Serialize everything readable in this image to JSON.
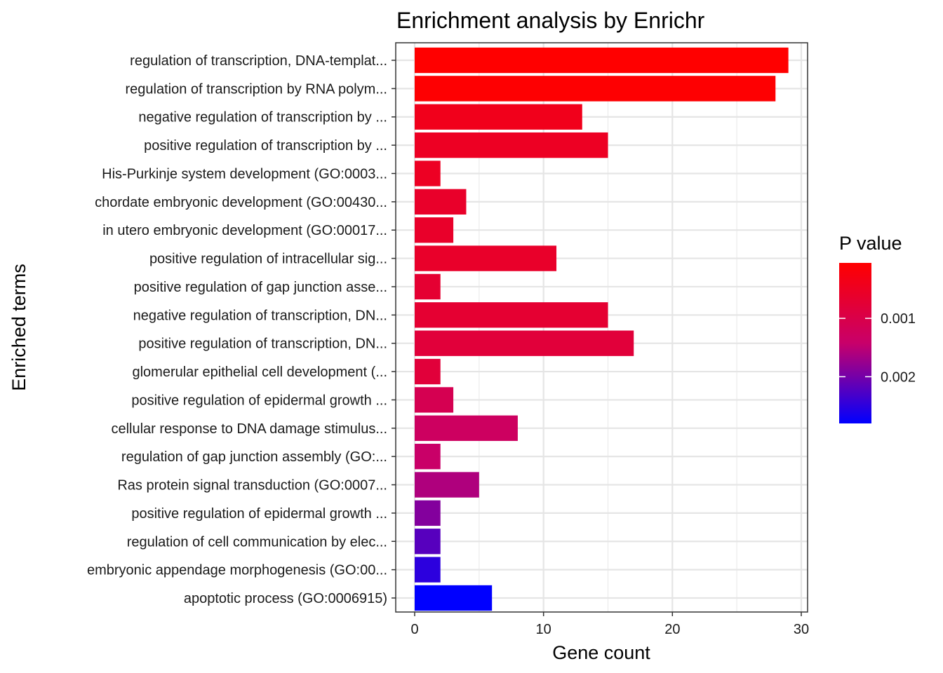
{
  "chart_data": {
    "type": "bar",
    "orientation": "horizontal",
    "title": "Enrichment analysis by Enrichr",
    "xlabel": "Gene count",
    "ylabel": "Enriched terms",
    "xlim": [
      0,
      30
    ],
    "x_ticks": [
      0,
      10,
      20,
      30
    ],
    "grid": true,
    "categories": [
      "regulation of transcription, DNA-templat...",
      "regulation of transcription by RNA polym...",
      "negative regulation of transcription by ...",
      "positive regulation of transcription by ...",
      "His-Purkinje system development (GO:0003...",
      "chordate embryonic development (GO:00430...",
      "in utero embryonic development (GO:00017...",
      "positive regulation of intracellular sig...",
      "positive regulation of gap junction asse...",
      "negative regulation of transcription, DN...",
      "positive regulation of transcription, DN...",
      "glomerular epithelial cell development (...",
      "positive regulation of epidermal growth ...",
      "cellular response to DNA damage stimulus...",
      "regulation of gap junction assembly (GO:...",
      "Ras protein signal transduction (GO:0007...",
      "positive regulation of epidermal growth ...",
      "regulation of cell communication by elec...",
      "embryonic appendage morphogenesis (GO:00...",
      "apoptotic process (GO:0006915)"
    ],
    "values": [
      29,
      28,
      13,
      15,
      2,
      4,
      3,
      11,
      2,
      15,
      17,
      2,
      3,
      8,
      2,
      5,
      2,
      2,
      2,
      6
    ],
    "p_values": [
      5e-05,
      8e-05,
      0.0004,
      0.0005,
      0.0005,
      0.0006,
      0.0006,
      0.0006,
      0.0007,
      0.0007,
      0.0008,
      0.0008,
      0.0011,
      0.0013,
      0.0014,
      0.0016,
      0.0019,
      0.0022,
      0.0025,
      0.0028
    ],
    "legend": {
      "title": "P value",
      "placement": "right",
      "range": [
        5e-05,
        0.0028
      ],
      "ticks": [
        0.001,
        0.002
      ],
      "tick_labels": [
        "0.001",
        "0.002"
      ],
      "color_low_p": "#FF0000",
      "color_high_p": "#0000FF"
    }
  }
}
